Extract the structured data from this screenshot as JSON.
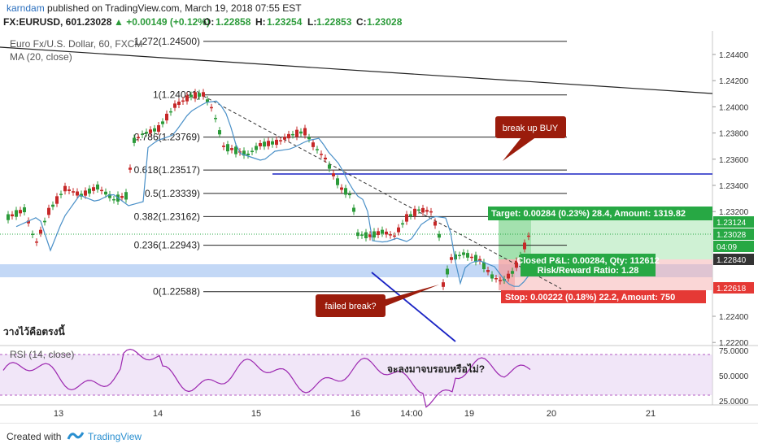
{
  "header": {
    "author": "karndam",
    "published": "published on TradingView.com, March 19, 2018 07:55 EST",
    "symbol": "FX:EURUSD, 60",
    "last": "1.23028",
    "change": "▲ +0.00149 (+0.12%)",
    "o_label": "O:",
    "o_val": "1.22858",
    "h_label": "H:",
    "h_val": "1.23254",
    "l_label": "L:",
    "l_val": "1.22853",
    "c_label": "C:",
    "c_val": "1.23028"
  },
  "legend": {
    "instrument": "Euro Fx/U.S. Dollar, 60, FXCM",
    "ma": "MA (20, close)"
  },
  "colors": {
    "up": "#2c9b3a",
    "down": "#c62828",
    "ma": "#4a90c8",
    "target": "#27a844",
    "stop": "#e53935",
    "callout": "#9b1c0c",
    "blue_line": "#1a23c4",
    "rsi": "#9c27b0"
  },
  "price_axis": {
    "ticks": [
      "1.24400",
      "1.24200",
      "1.24000",
      "1.23800",
      "1.23600",
      "1.23400",
      "1.23200",
      "1.22400",
      "1.22200"
    ],
    "tags": [
      {
        "text": "1.23124",
        "color": "#27a844"
      },
      {
        "text": "1.23028",
        "color": "#27a844"
      },
      {
        "text": "04:09",
        "color": "#27a844"
      },
      {
        "text": "1.22840",
        "color": "#333333"
      },
      {
        "text": "1.22618",
        "color": "#e53935"
      }
    ]
  },
  "fib": [
    {
      "label": "1.272(1.24500)",
      "price": 1.245
    },
    {
      "label": "1(1.24091)",
      "price": 1.24091
    },
    {
      "label": "0.786(1.23769)",
      "price": 1.23769
    },
    {
      "label": "0.618(1.23517)",
      "price": 1.23517
    },
    {
      "label": "0.5(1.23339)",
      "price": 1.23339
    },
    {
      "label": "0.382(1.23162)",
      "price": 1.23162
    },
    {
      "label": "0.236(1.22943)",
      "price": 1.22943
    },
    {
      "label": "0(1.22588)",
      "price": 1.22588
    }
  ],
  "position": {
    "target": "Target: 0.00284 (0.23%) 28.4, Amount: 1319.82",
    "closed": "Closed P&L: 0.00284, Qty: 112612",
    "rr": "Risk/Reward Ratio: 1.28",
    "stop": "Stop: 0.00222 (0.18%) 22.2, Amount: 750"
  },
  "callouts": {
    "buy": "break up BUY",
    "failed": "failed break?"
  },
  "annotations": {
    "thai_left": "วางไว้คือตรงนี้",
    "thai_rsi": "จะลงมาจบรอบหรือไม่?"
  },
  "rsi": {
    "label": "RSI (14, close)",
    "ticks": [
      "75.0000",
      "50.0000",
      "25.0000"
    ]
  },
  "time_axis": [
    "13",
    "14",
    "15",
    "16",
    "14:00",
    "19",
    "20",
    "21"
  ],
  "footer": {
    "created": "Created with",
    "brand": "TradingView"
  }
}
